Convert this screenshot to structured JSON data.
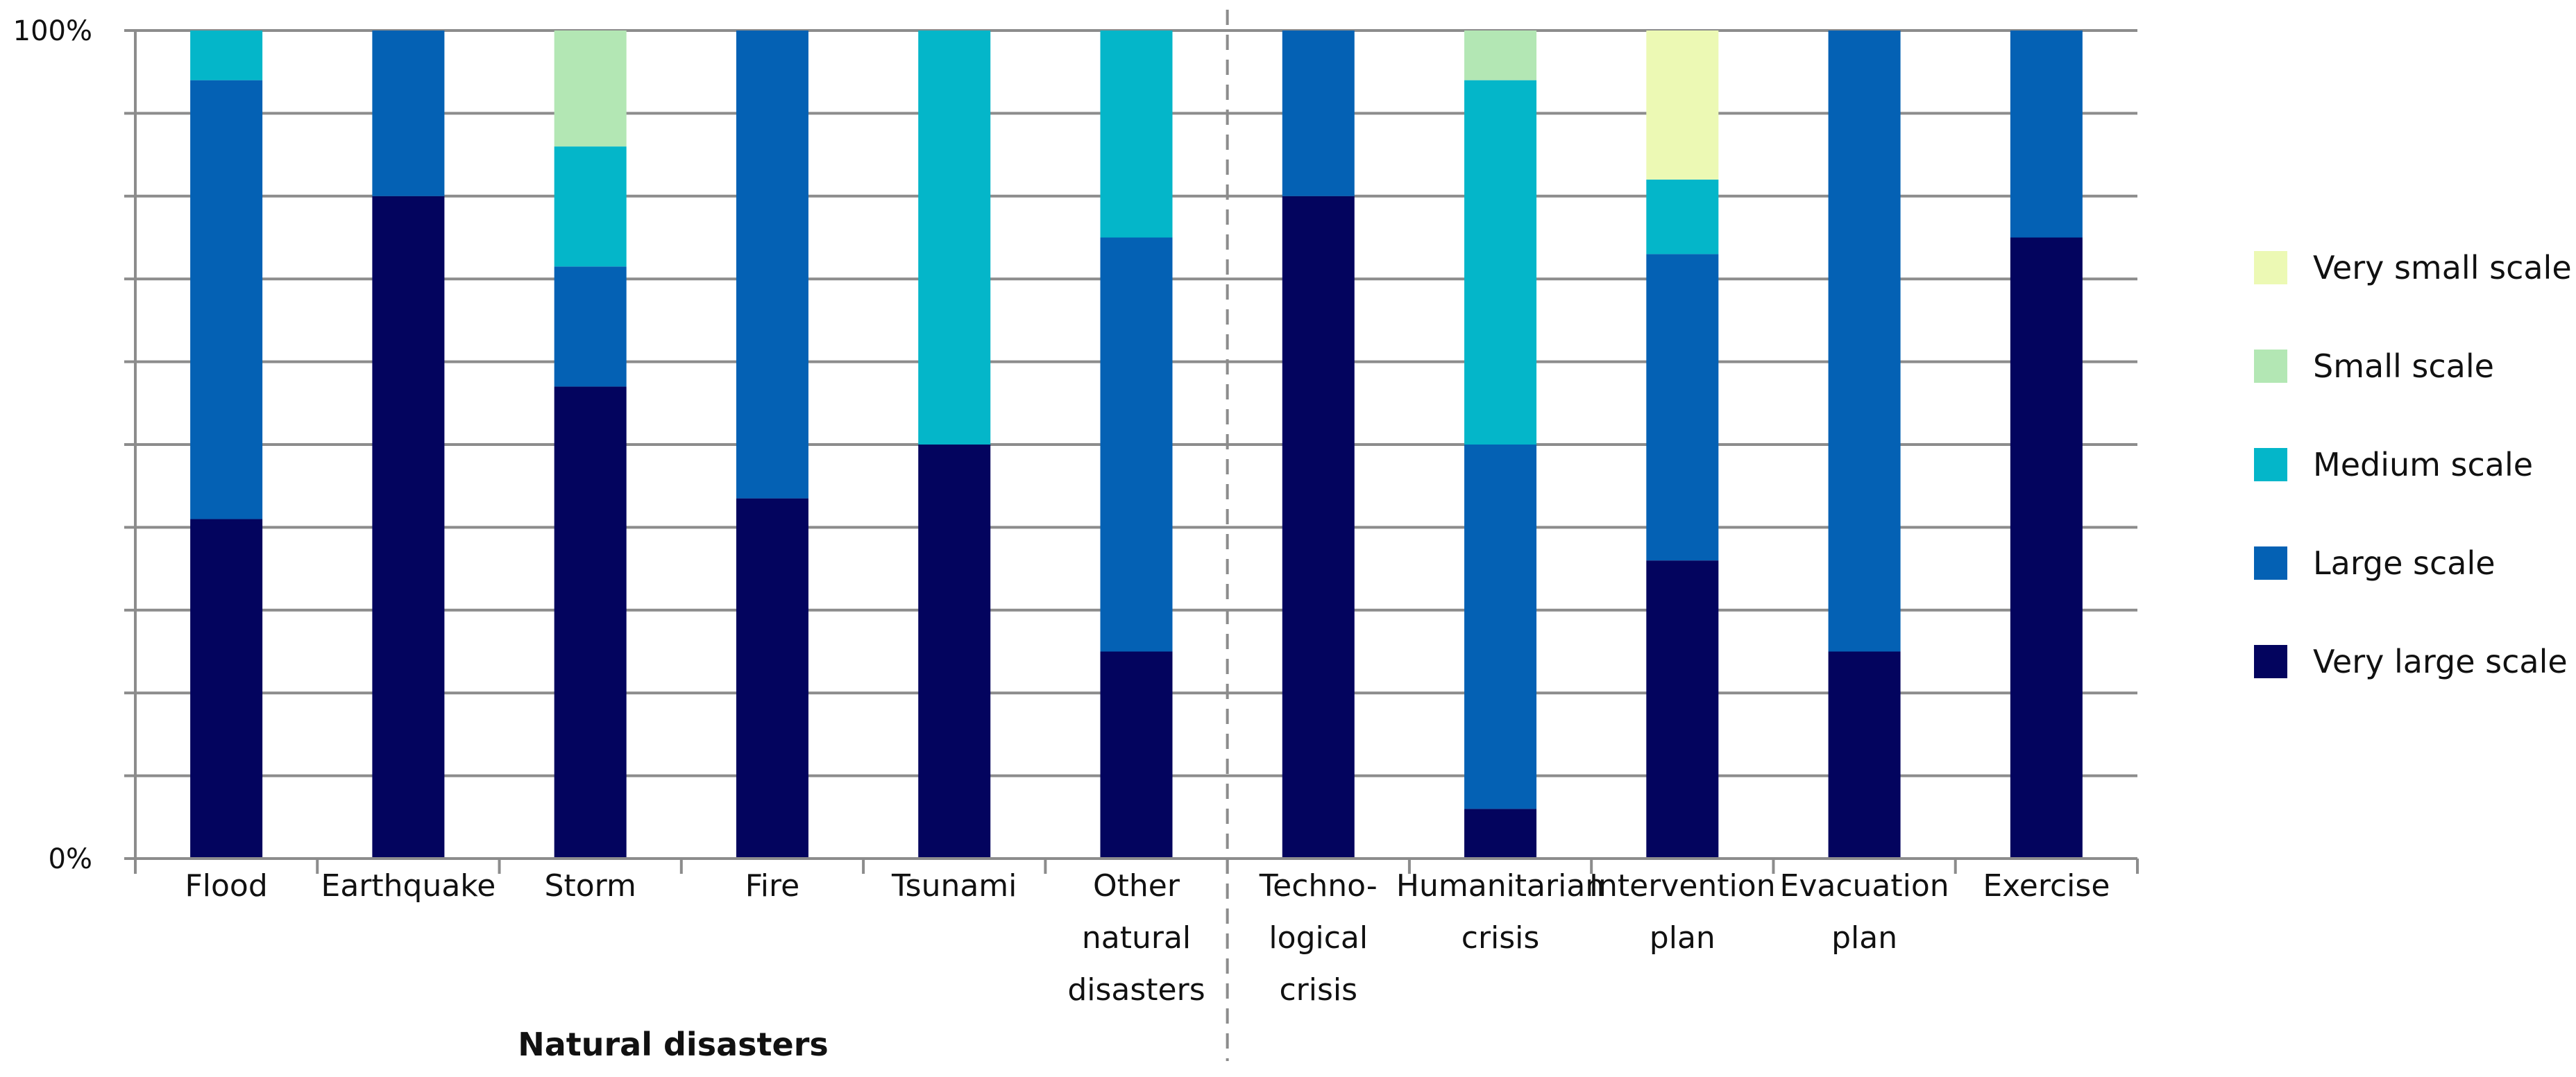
{
  "chart_data": {
    "type": "stacked-bar-100",
    "y_tick_labels": [
      "0%",
      "100%"
    ],
    "ylim": [
      0,
      100
    ],
    "grid": true,
    "categories": [
      [
        "Flood"
      ],
      [
        "Earthquake"
      ],
      [
        "Storm"
      ],
      [
        "Fire"
      ],
      [
        "Tsunami"
      ],
      [
        "Other",
        "natural",
        "disasters"
      ],
      [
        "Techno-",
        "logical",
        "crisis"
      ],
      [
        "Humanitarian",
        "crisis"
      ],
      [
        "Intervention",
        "plan"
      ],
      [
        "Evacuation",
        "plan"
      ],
      [
        "Exercise"
      ]
    ],
    "group_label": "Natural disasters",
    "separator_after_index": 5,
    "series": [
      {
        "name": "Very large scale",
        "color": "#03045e",
        "values": [
          41,
          80,
          57,
          43.5,
          50,
          25,
          80,
          6,
          36,
          25,
          75
        ]
      },
      {
        "name": "Large scale",
        "color": "#0461b4",
        "values": [
          53,
          20,
          14.5,
          56.5,
          0,
          50,
          20,
          44,
          37,
          75,
          25
        ]
      },
      {
        "name": "Medium scale",
        "color": "#04b6c9",
        "values": [
          6,
          0,
          14.5,
          0,
          50,
          25,
          0,
          44,
          9,
          0,
          0
        ]
      },
      {
        "name": "Small scale",
        "color": "#b3e7b4",
        "values": [
          0,
          0,
          14,
          0,
          0,
          0,
          0,
          6,
          0,
          0,
          0
        ]
      },
      {
        "name": "Very small scale",
        "color": "#ecf9b4",
        "values": [
          0,
          0,
          0,
          0,
          0,
          0,
          0,
          0,
          18,
          0,
          0
        ]
      }
    ],
    "legend_order": [
      "Very small scale",
      "Small scale",
      "Medium scale",
      "Large scale",
      "Very large scale"
    ],
    "legend_position": "right"
  }
}
